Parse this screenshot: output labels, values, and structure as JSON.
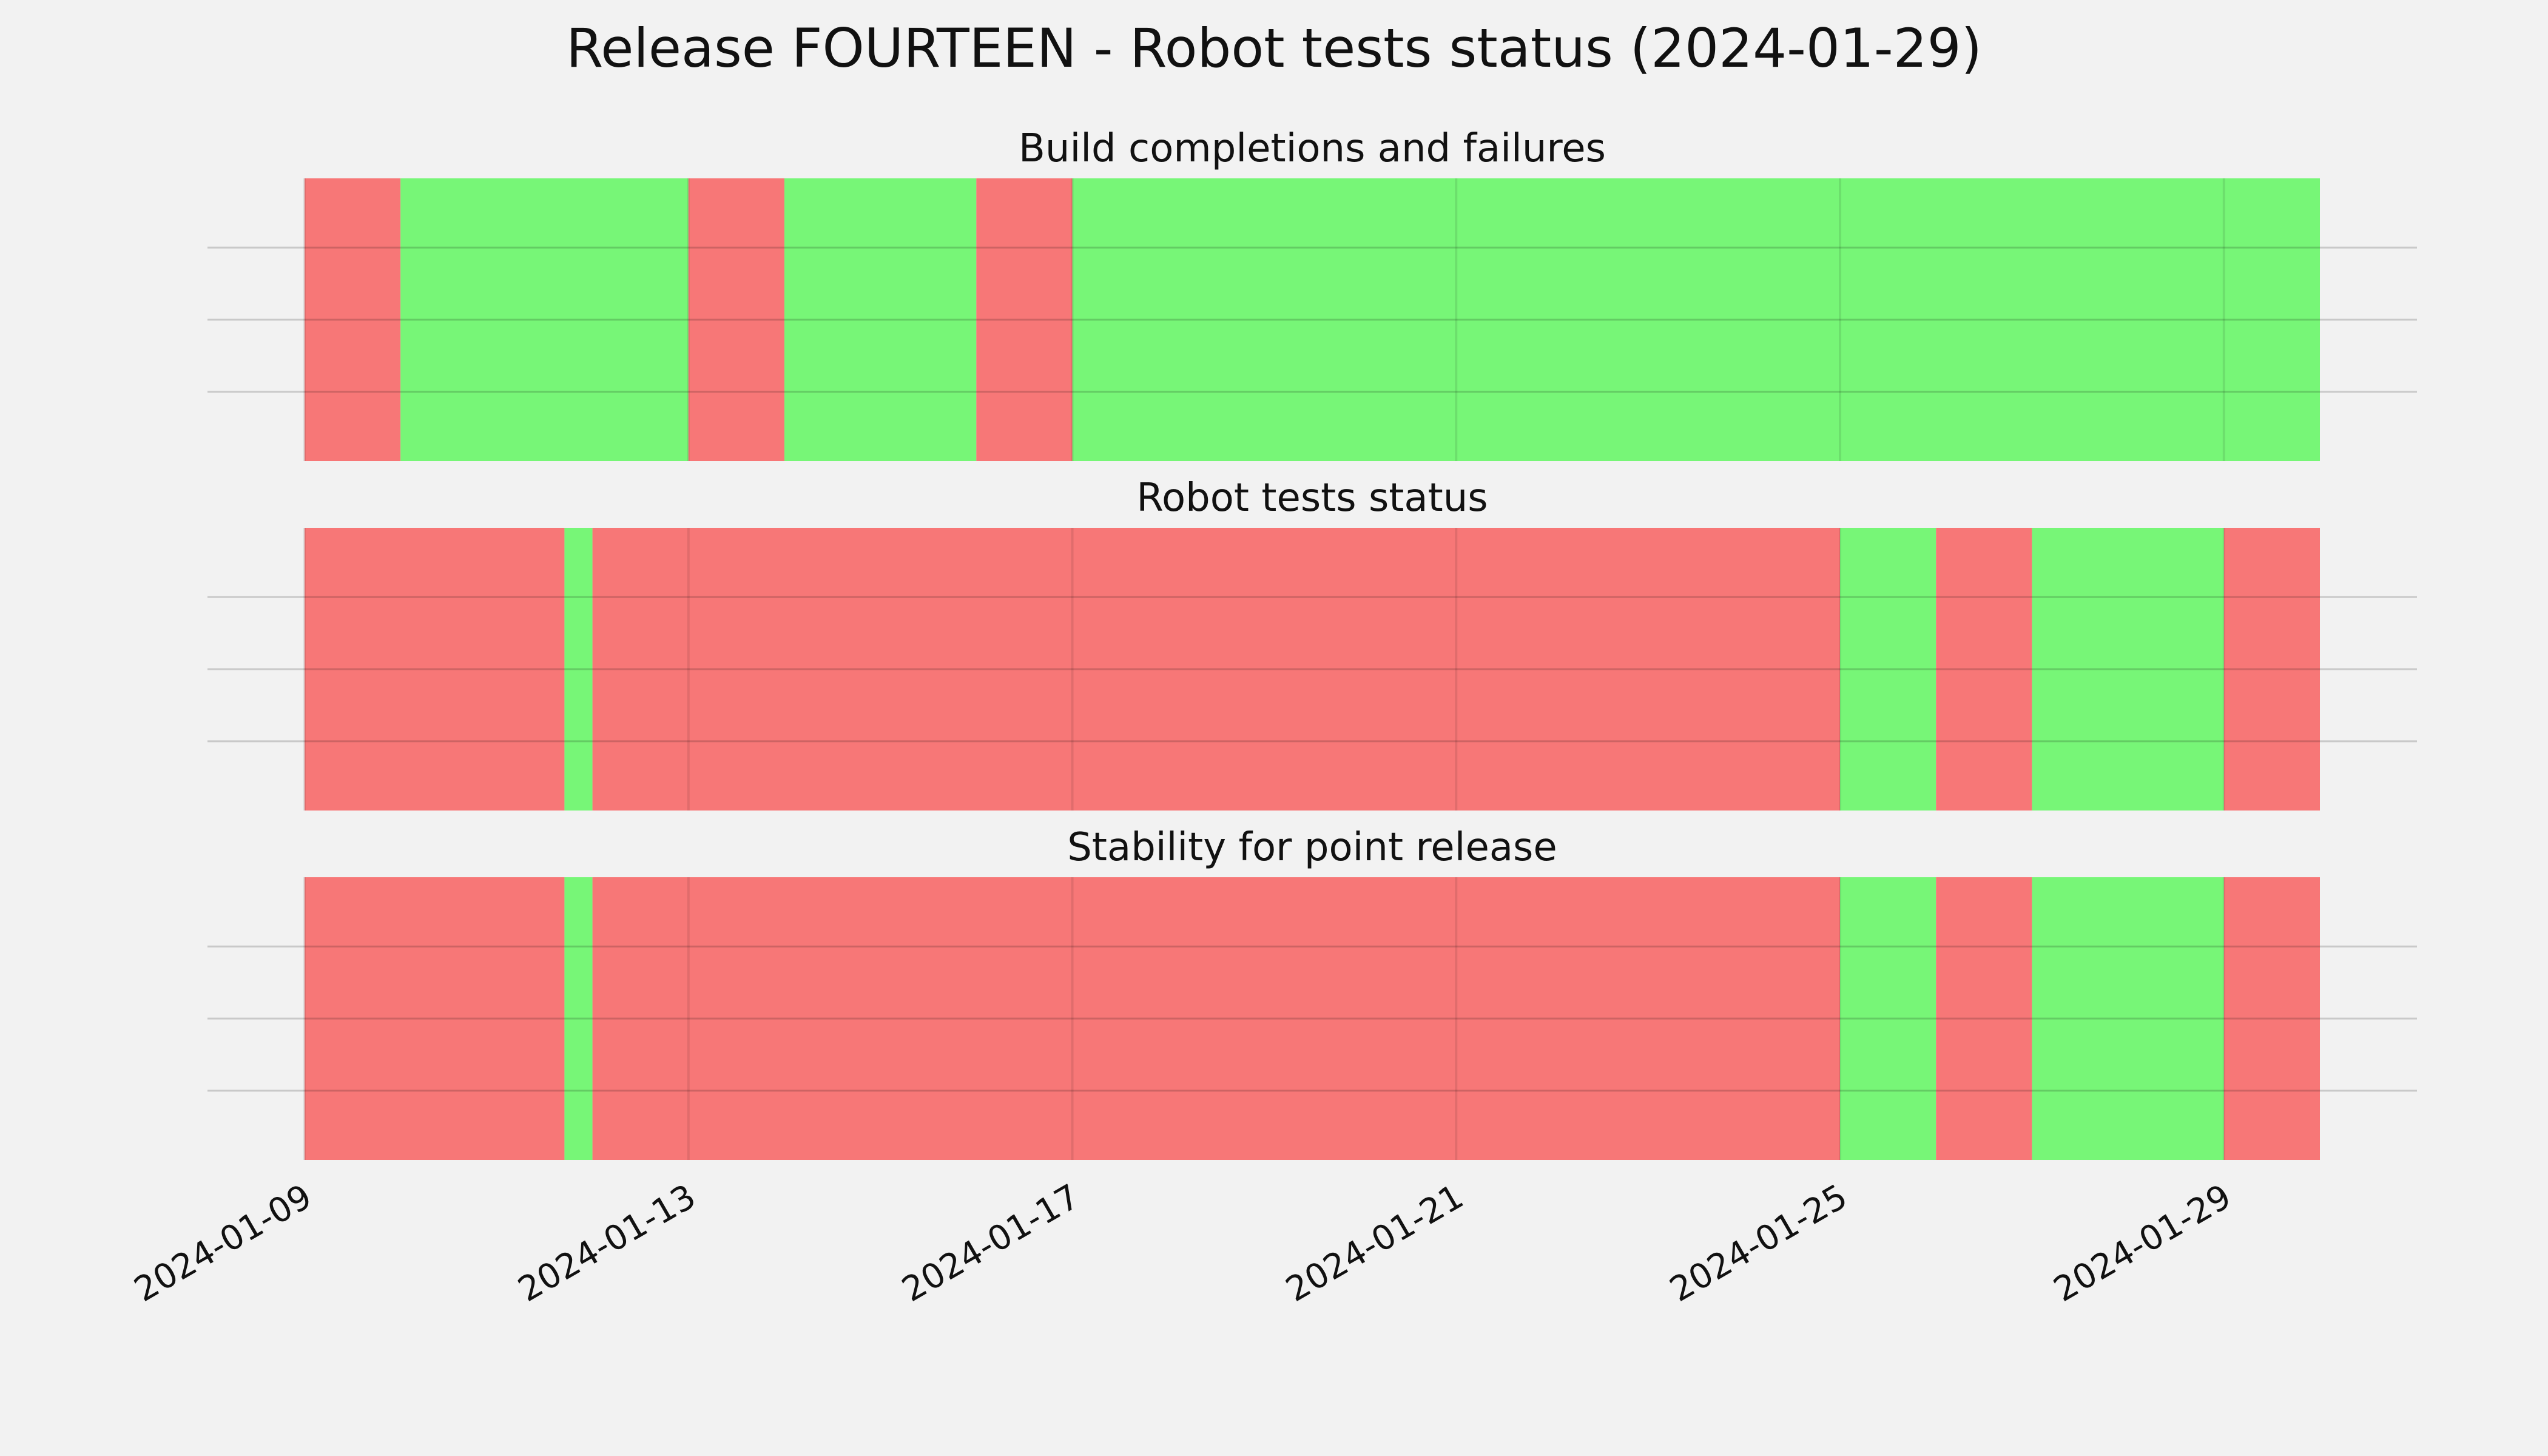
{
  "chart_data": {
    "type": "timeline",
    "title": "Release FOURTEEN - Robot tests status (2024-01-29)",
    "x_range": [
      "2024-01-09",
      "2024-01-30"
    ],
    "x_ticks": [
      "2024-01-09",
      "2024-01-13",
      "2024-01-17",
      "2024-01-21",
      "2024-01-25",
      "2024-01-29"
    ],
    "grid": true,
    "colors": {
      "pass": "#77f677",
      "fail": "#f77777",
      "background": "#f2f2f2",
      "grid": "#c8c8c8"
    },
    "panels": [
      {
        "title": "Build completions and failures",
        "segments": [
          {
            "start": "2024-01-09",
            "end": "2024-01-10",
            "status": "fail"
          },
          {
            "start": "2024-01-10",
            "end": "2024-01-13",
            "status": "pass"
          },
          {
            "start": "2024-01-13",
            "end": "2024-01-14",
            "status": "fail"
          },
          {
            "start": "2024-01-14",
            "end": "2024-01-16",
            "status": "pass"
          },
          {
            "start": "2024-01-16",
            "end": "2024-01-17",
            "status": "fail"
          },
          {
            "start": "2024-01-17",
            "end": "2024-01-30",
            "status": "pass"
          }
        ]
      },
      {
        "title": "Robot tests status",
        "segments": [
          {
            "start": "2024-01-09",
            "end": "2024-01-11 17:00",
            "status": "fail"
          },
          {
            "start": "2024-01-11 17:00",
            "end": "2024-01-12",
            "status": "pass"
          },
          {
            "start": "2024-01-12",
            "end": "2024-01-25",
            "status": "fail"
          },
          {
            "start": "2024-01-25",
            "end": "2024-01-26",
            "status": "pass"
          },
          {
            "start": "2024-01-26",
            "end": "2024-01-27",
            "status": "fail"
          },
          {
            "start": "2024-01-27",
            "end": "2024-01-29",
            "status": "pass"
          },
          {
            "start": "2024-01-29",
            "end": "2024-01-30",
            "status": "fail"
          }
        ]
      },
      {
        "title": "Stability for point release",
        "segments": [
          {
            "start": "2024-01-09",
            "end": "2024-01-11 17:00",
            "status": "fail"
          },
          {
            "start": "2024-01-11 17:00",
            "end": "2024-01-12",
            "status": "pass"
          },
          {
            "start": "2024-01-12",
            "end": "2024-01-25",
            "status": "fail"
          },
          {
            "start": "2024-01-25",
            "end": "2024-01-26",
            "status": "pass"
          },
          {
            "start": "2024-01-26",
            "end": "2024-01-27",
            "status": "fail"
          },
          {
            "start": "2024-01-27",
            "end": "2024-01-29",
            "status": "pass"
          },
          {
            "start": "2024-01-29",
            "end": "2024-01-30",
            "status": "fail"
          }
        ]
      }
    ]
  }
}
